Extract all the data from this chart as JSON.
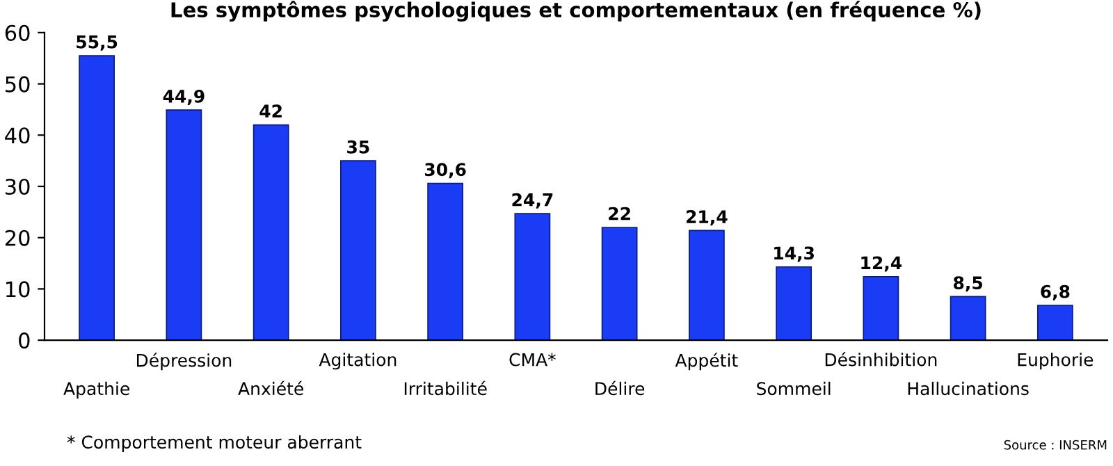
{
  "chart_data": {
    "type": "bar",
    "title": "Les symptômes psychologiques et comportementaux (en fréquence %)",
    "categories": [
      "Apathie",
      "Dépression",
      "Anxiété",
      "Agitation",
      "Irritabilité",
      "CMA*",
      "Délire",
      "Appétit",
      "Sommeil",
      "Désinhibition",
      "Hallucinations",
      "Euphorie"
    ],
    "values": [
      55.5,
      44.9,
      42,
      35,
      30.6,
      24.7,
      22,
      21.4,
      14.3,
      12.4,
      8.5,
      6.8
    ],
    "value_labels": [
      "55,5",
      "44,9",
      "42",
      "35",
      "30,6",
      "24,7",
      "22",
      "21,4",
      "14,3",
      "12,4",
      "8,5",
      "6,8"
    ],
    "color": "#1a3cf5",
    "ylim": [
      0,
      60
    ],
    "yticks": [
      0,
      10,
      20,
      30,
      40,
      50,
      60
    ],
    "grid": false,
    "legend": false,
    "annotations": [
      "* Comportement moteur aberrant",
      "Source : INSERM"
    ]
  }
}
